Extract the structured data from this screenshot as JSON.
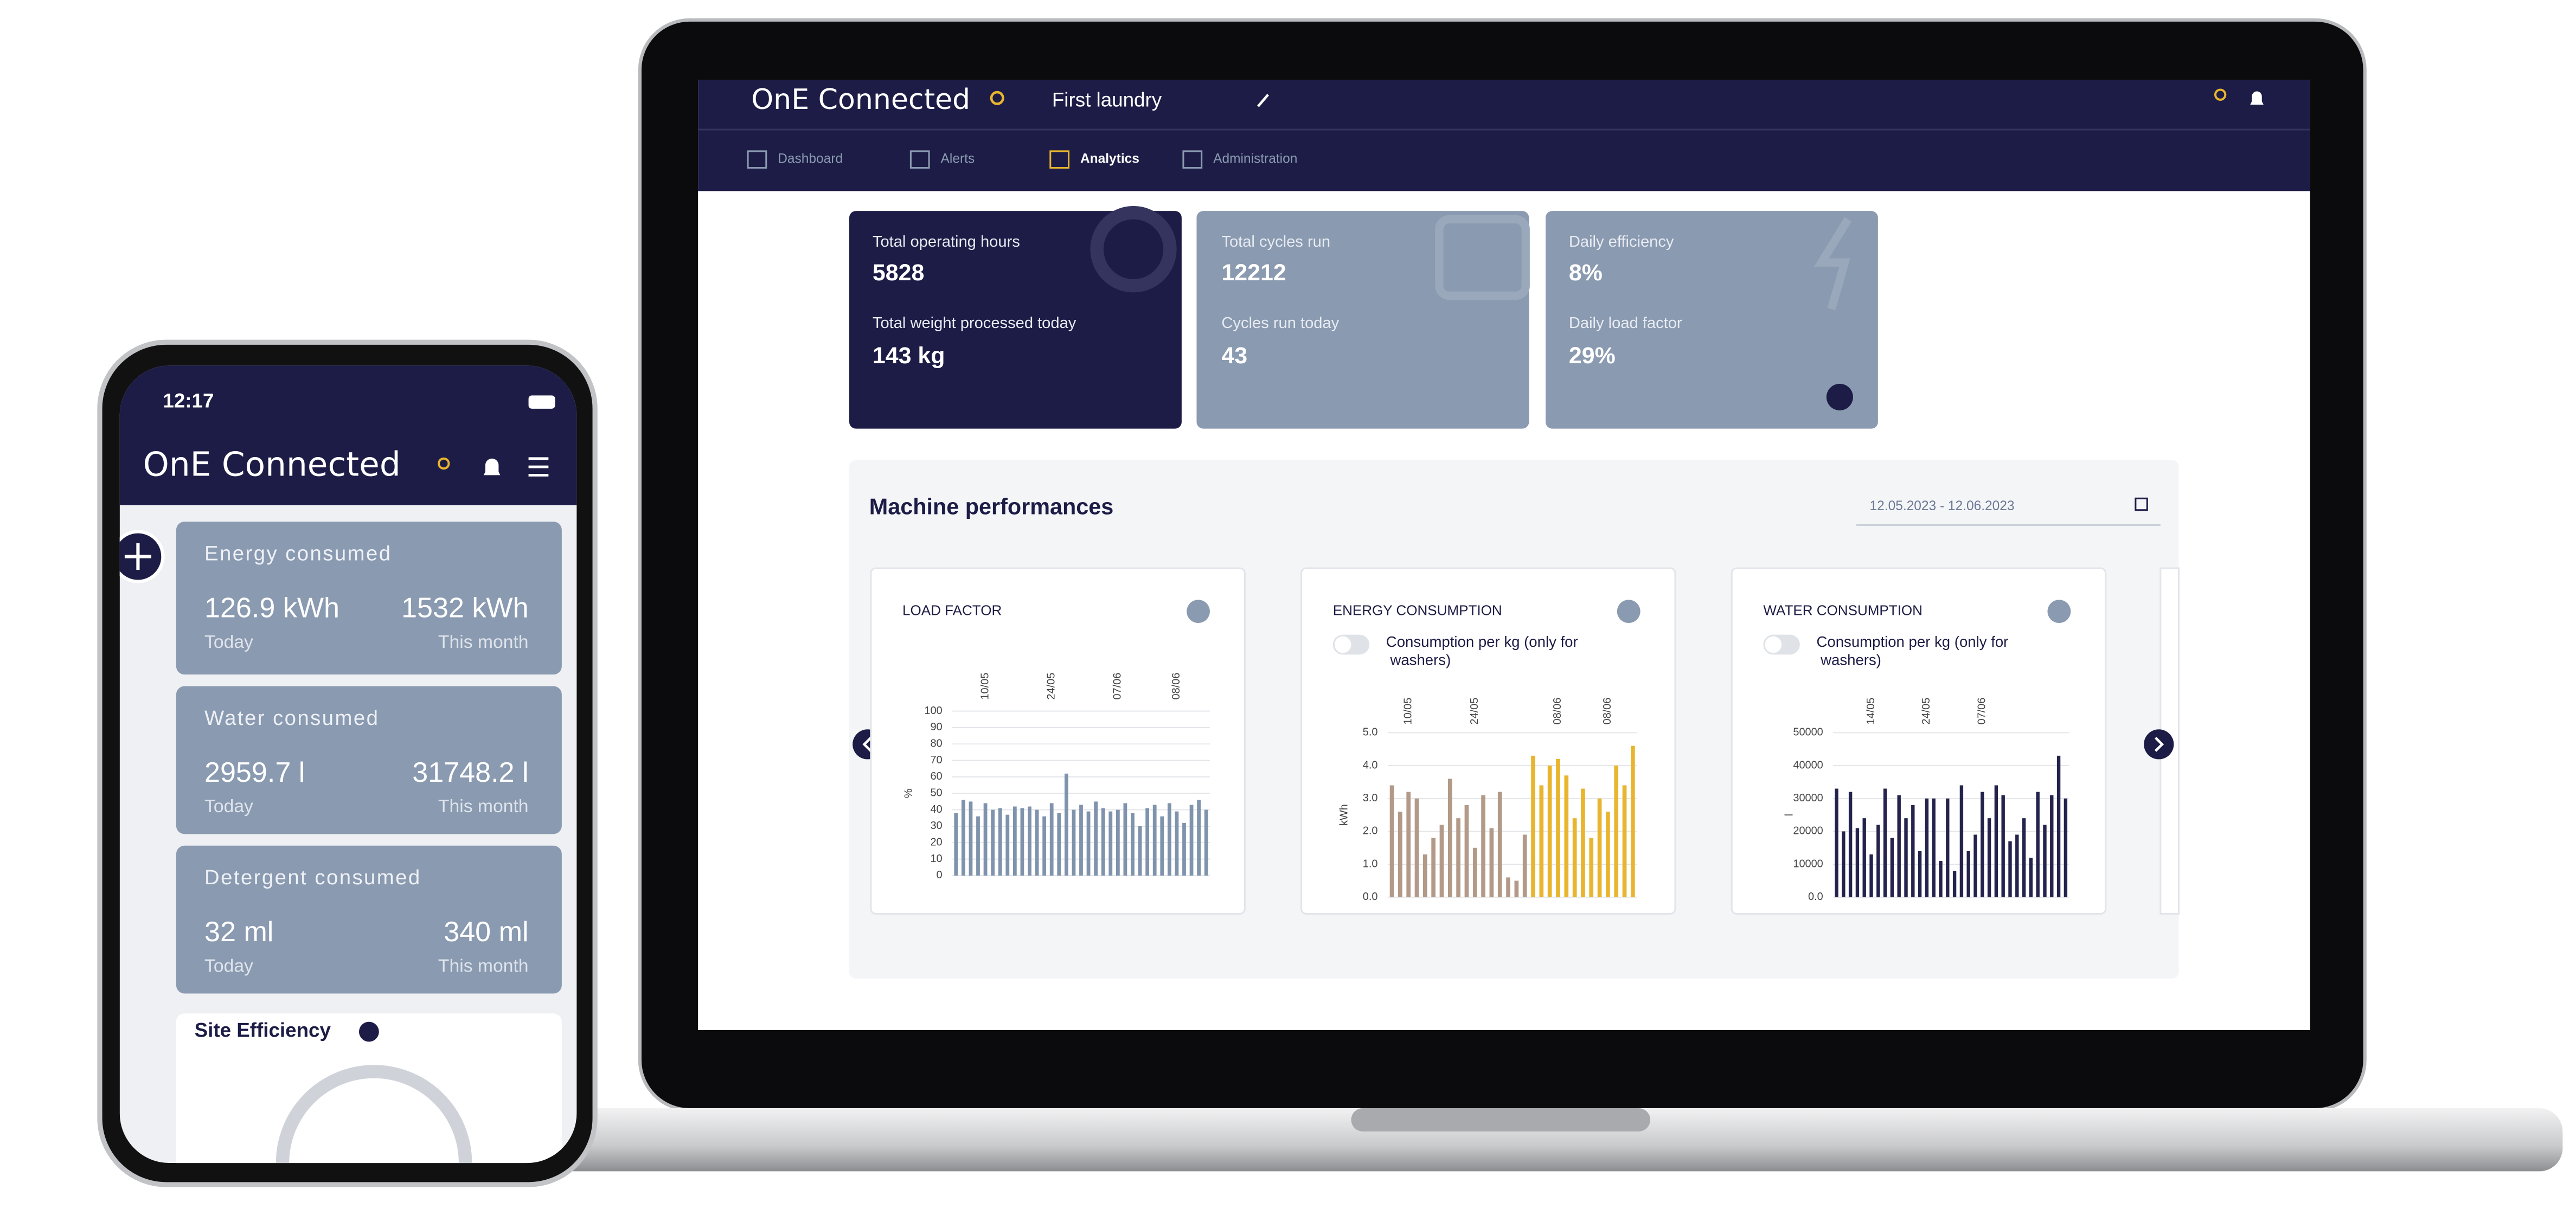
{
  "phone": {
    "time": "12:17",
    "brand": "OnE Connected",
    "cards": [
      {
        "title": "Energy consumed",
        "today": "126.9 kWh",
        "today_label": "Today",
        "month": "1532 kWh",
        "month_label": "This month"
      },
      {
        "title": "Water consumed",
        "today": "2959.7 l",
        "today_label": "Today",
        "month": "31748.2 l",
        "month_label": "This month"
      },
      {
        "title": "Detergent consumed",
        "today": "32 ml",
        "today_label": "Today",
        "month": "340 ml",
        "month_label": "This month"
      }
    ],
    "site_efficiency": "Site Efficiency"
  },
  "laptop": {
    "brand": "OnE Connected",
    "location": "First laundry",
    "nav": [
      "Dashboard",
      "Alerts",
      "Analytics",
      "Administration"
    ],
    "kpis": [
      [
        {
          "label": "Total operating hours",
          "value": "5828"
        },
        {
          "label": "Total weight processed today",
          "value": "143 kg"
        }
      ],
      [
        {
          "label": "Total cycles run",
          "value": "12212"
        },
        {
          "label": "Cycles run today",
          "value": "43"
        }
      ],
      [
        {
          "label": "Daily efficiency",
          "value": "8%"
        },
        {
          "label": "Daily load factor",
          "value": "29%"
        }
      ]
    ],
    "section_title": "Machine performances",
    "date_range": "12.05.2023 - 12.06.2023",
    "toggle_label": "Consumption per kg (only for washers)",
    "charts": [
      {
        "type": "bar",
        "title": "LOAD FACTOR",
        "y_label": "%",
        "ylim": [
          0,
          100
        ],
        "yticks": [
          0,
          10,
          20,
          30,
          40,
          50,
          60,
          70,
          80,
          90,
          100
        ],
        "grid": true,
        "categories": [
          null,
          null,
          null,
          null,
          "10/05",
          null,
          null,
          null,
          null,
          null,
          null,
          null,
          null,
          "24/05",
          null,
          null,
          null,
          null,
          null,
          null,
          null,
          null,
          "07/06",
          null,
          null,
          null,
          null,
          null,
          null,
          null,
          "08/06",
          null,
          null,
          null,
          null
        ],
        "series": [
          {
            "color": "#7f93ad",
            "values": [
              38,
              46,
              45,
              36,
              44,
              40,
              41,
              37,
              42,
              41,
              42,
              40,
              36,
              44,
              38,
              62,
              40,
              43,
              39,
              45,
              41,
              39,
              40,
              44,
              38,
              30,
              41,
              43,
              36,
              44,
              39,
              32,
              43,
              46,
              40
            ]
          }
        ]
      },
      {
        "type": "bar",
        "title": "ENERGY CONSUMPTION",
        "y_label": "kWh",
        "ylim": [
          0,
          5
        ],
        "grid": true,
        "yticks": [
          {
            "value": 0,
            "label": "0.0"
          },
          {
            "value": 1,
            "label": "1.0"
          },
          {
            "value": 2,
            "label": "2.0"
          },
          {
            "value": 3,
            "label": "3.0"
          },
          {
            "value": 4,
            "label": "4.0"
          },
          {
            "value": 5,
            "label": "5.0"
          }
        ],
        "categories": [
          null,
          null,
          "10/05",
          null,
          null,
          null,
          null,
          null,
          null,
          null,
          "24/05",
          null,
          null,
          null,
          null,
          null,
          null,
          null,
          null,
          null,
          "08/06",
          null,
          null,
          null,
          null,
          null,
          "08/06",
          null,
          null,
          null
        ],
        "series": [
          {
            "color": "#b39a88",
            "values": [
              3.4,
              2.6,
              3.2,
              3.0,
              1.3,
              1.8,
              2.2,
              3.6,
              2.4,
              2.8,
              1.5,
              3.1,
              2.1,
              3.2,
              0.6,
              0.5,
              1.9,
              null,
              null,
              null,
              null,
              null,
              null,
              null,
              null,
              null,
              null,
              null,
              null,
              null
            ]
          },
          {
            "color": "#e8b52e",
            "values": [
              null,
              null,
              null,
              null,
              null,
              null,
              null,
              null,
              null,
              null,
              null,
              null,
              null,
              null,
              null,
              null,
              null,
              4.3,
              3.4,
              4.0,
              4.2,
              3.7,
              2.4,
              3.3,
              1.8,
              3.0,
              2.6,
              4.0,
              3.4,
              4.6
            ]
          }
        ]
      },
      {
        "type": "bar",
        "title": "WATER CONSUMPTION",
        "y_label": "l",
        "ylim": [
          0,
          50000
        ],
        "grid": true,
        "yticks": [
          {
            "value": 0,
            "label": "0.0"
          },
          10000,
          20000,
          30000,
          40000,
          50000
        ],
        "categories": [
          null,
          null,
          null,
          null,
          null,
          "14/05",
          null,
          null,
          null,
          null,
          null,
          null,
          null,
          "24/05",
          null,
          null,
          null,
          null,
          null,
          null,
          null,
          "07/06",
          null,
          null,
          null,
          null,
          null,
          null,
          null,
          null,
          null,
          null,
          null,
          null
        ],
        "series": [
          {
            "color": "#23234d",
            "values": [
              33000,
              20000,
              32000,
              21000,
              24000,
              13000,
              22000,
              33000,
              18000,
              31000,
              24000,
              28000,
              14000,
              30000,
              30000,
              11000,
              30000,
              8000,
              34000,
              14000,
              19000,
              32000,
              24000,
              34000,
              31000,
              17000,
              19000,
              24000,
              12000,
              32000,
              22000,
              31000,
              43000,
              30000
            ]
          }
        ]
      }
    ]
  }
}
